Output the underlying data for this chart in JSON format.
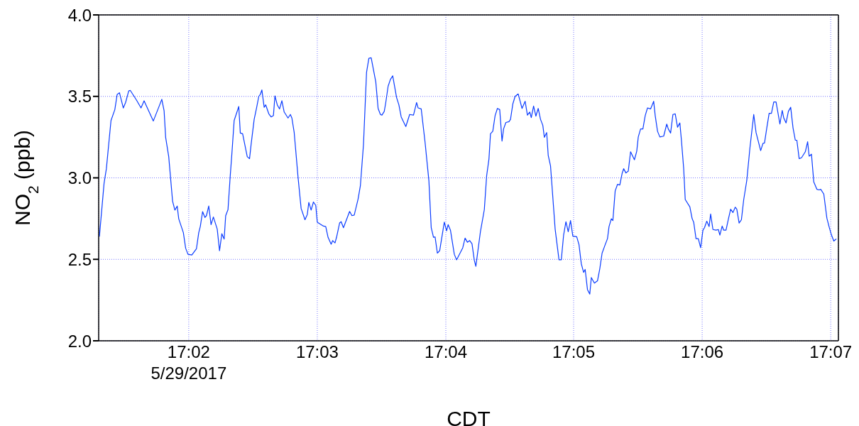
{
  "chart_data": {
    "type": "line",
    "xlabel": "CDT",
    "ylabel": "NO$_{2}$ (ppb)",
    "xlim": [
      17.0216,
      17.1177
    ],
    "ylim": [
      2.0,
      4.0
    ],
    "xticks": [
      {
        "value": 17.0333,
        "label": "17:02\n5/29/2017"
      },
      {
        "value": 17.05,
        "label": "17:03"
      },
      {
        "value": 17.0667,
        "label": "17:04"
      },
      {
        "value": 17.0833,
        "label": "17:05"
      },
      {
        "value": 17.1,
        "label": "17:06"
      },
      {
        "value": 17.1167,
        "label": "17:07"
      }
    ],
    "yticks": [
      {
        "value": 2,
        "label": "2.0"
      },
      {
        "value": 2.5,
        "label": "2.5"
      },
      {
        "value": 3,
        "label": "3.0"
      },
      {
        "value": 3.5,
        "label": "3.5"
      },
      {
        "value": 4,
        "label": "4.0"
      }
    ],
    "grid": true,
    "marker": "none",
    "line_style": "solid",
    "series": [
      {
        "color": "#0a3cff",
        "x": [
          17.0217,
          17.0223,
          17.0226,
          17.0232,
          17.0237,
          17.024,
          17.0243,
          17.0248,
          17.0251,
          17.0255,
          17.0257,
          17.0265,
          17.0271,
          17.0275,
          17.0287,
          17.0294,
          17.0298,
          17.0301,
          17.0303,
          17.0307,
          17.0312,
          17.0315,
          17.0318,
          17.032,
          17.0326,
          17.0329,
          17.0332,
          17.0337,
          17.0343,
          17.0346,
          17.0348,
          17.0351,
          17.0354,
          17.0356,
          17.0359,
          17.0362,
          17.0365,
          17.037,
          17.0373,
          17.0376,
          17.0379,
          17.0381,
          17.0384,
          17.0387,
          17.0389,
          17.0392,
          17.0398,
          17.04,
          17.0403,
          17.0409,
          17.0412,
          17.0414,
          17.0418,
          17.0421,
          17.0424,
          17.0426,
          17.0428,
          17.0431,
          17.0433,
          17.0437,
          17.044,
          17.0443,
          17.0445,
          17.0448,
          17.0451,
          17.0454,
          17.0457,
          17.0462,
          17.0465,
          17.0467,
          17.047,
          17.0475,
          17.0479,
          17.0484,
          17.0487,
          17.0489,
          17.0492,
          17.0495,
          17.0498,
          17.05,
          17.0508,
          17.0511,
          17.0514,
          17.0518,
          17.052,
          17.0523,
          17.0525,
          17.0529,
          17.0531,
          17.0534,
          17.0542,
          17.0545,
          17.0548,
          17.0553,
          17.0556,
          17.056,
          17.0564,
          17.0567,
          17.057,
          17.0576,
          17.0579,
          17.0582,
          17.0584,
          17.0587,
          17.0589,
          17.0592,
          17.0595,
          17.0598,
          17.0603,
          17.0606,
          17.0609,
          17.0615,
          17.062,
          17.0625,
          17.0629,
          17.0631,
          17.0635,
          17.064,
          17.0645,
          17.0648,
          17.0651,
          17.0653,
          17.0656,
          17.0659,
          17.0665,
          17.0668,
          17.067,
          17.0673,
          17.0678,
          17.0681,
          17.0689,
          17.0692,
          17.0695,
          17.0698,
          17.0701,
          17.0704,
          17.0706,
          17.0712,
          17.0717,
          17.072,
          17.0723,
          17.0725,
          17.0728,
          17.0731,
          17.0734,
          17.0737,
          17.074,
          17.0742,
          17.0745,
          17.0749,
          17.0751,
          17.0754,
          17.0757,
          17.0761,
          17.0766,
          17.077,
          17.0773,
          17.0776,
          17.0778,
          17.0781,
          17.0784,
          17.0787,
          17.079,
          17.0793,
          17.0795,
          17.0798,
          17.08,
          17.0803,
          17.0809,
          17.0814,
          17.0817,
          17.082,
          17.0823,
          17.0826,
          17.0829,
          17.0832,
          17.0837,
          17.084,
          17.0843,
          17.0846,
          17.0848,
          17.0851,
          17.0854,
          17.0856,
          17.086,
          17.0864,
          17.0867,
          17.087,
          17.0874,
          17.0877,
          17.0879,
          17.0882,
          17.0884,
          17.0887,
          17.089,
          17.0893,
          17.0896,
          17.0898,
          17.0901,
          17.0904,
          17.0907,
          17.0912,
          17.0915,
          17.0917,
          17.092,
          17.0923,
          17.0926,
          17.0929,
          17.0933,
          17.0937,
          17.0939,
          17.0942,
          17.0945,
          17.095,
          17.0954,
          17.0956,
          17.0959,
          17.0962,
          17.0965,
          17.0968,
          17.0971,
          17.0973,
          17.0976,
          17.0978,
          17.0984,
          17.0987,
          17.0989,
          17.0992,
          17.0995,
          17.0998,
          17.1001,
          17.1003,
          17.1006,
          17.1009,
          17.1011,
          17.1014,
          17.1018,
          17.1021,
          17.1023,
          17.1026,
          17.1028,
          17.1031,
          17.1034,
          17.1037,
          17.104,
          17.1043,
          17.1045,
          17.1048,
          17.1051,
          17.1054,
          17.1058,
          17.1062,
          17.1067,
          17.107,
          17.1076,
          17.1079,
          17.1081,
          17.1084,
          17.1087,
          17.109,
          17.1093,
          17.1096,
          17.1101,
          17.1104,
          17.1106,
          17.1109,
          17.1112,
          17.1115,
          17.1118,
          17.1121,
          17.1123,
          17.1126,
          17.1129,
          17.1134,
          17.1137,
          17.1139,
          17.1142,
          17.1145,
          17.1149,
          17.1152,
          17.1154,
          17.1158,
          17.1162,
          17.1165,
          17.1168,
          17.1171,
          17.1174
        ],
        "values": [
          2.642,
          2.967,
          3.056,
          3.352,
          3.419,
          3.512,
          3.522,
          3.429,
          3.463,
          3.533,
          3.537,
          3.478,
          3.429,
          3.473,
          3.349,
          3.433,
          3.482,
          3.411,
          3.249,
          3.13,
          2.857,
          2.802,
          2.827,
          2.749,
          2.664,
          2.568,
          2.531,
          2.527,
          2.565,
          2.664,
          2.701,
          2.793,
          2.757,
          2.768,
          2.827,
          2.713,
          2.76,
          2.686,
          2.553,
          2.657,
          2.624,
          2.768,
          2.805,
          3.019,
          3.145,
          3.352,
          3.438,
          3.275,
          3.271,
          3.13,
          3.118,
          3.204,
          3.359,
          3.426,
          3.5,
          3.512,
          3.54,
          3.433,
          3.448,
          3.393,
          3.374,
          3.382,
          3.503,
          3.448,
          3.423,
          3.473,
          3.404,
          3.367,
          3.389,
          3.367,
          3.278,
          3.004,
          2.812,
          2.743,
          2.775,
          2.849,
          2.802,
          2.852,
          2.831,
          2.728,
          2.704,
          2.701,
          2.635,
          2.593,
          2.615,
          2.601,
          2.635,
          2.723,
          2.731,
          2.694,
          2.794,
          2.768,
          2.772,
          2.87,
          2.953,
          3.204,
          3.648,
          3.734,
          3.737,
          3.589,
          3.426,
          3.389,
          3.385,
          3.408,
          3.463,
          3.562,
          3.604,
          3.626,
          3.493,
          3.448,
          3.374,
          3.315,
          3.389,
          3.385,
          3.462,
          3.429,
          3.423,
          3.219,
          2.982,
          2.694,
          2.635,
          2.638,
          2.538,
          2.553,
          2.728,
          2.675,
          2.713,
          2.679,
          2.531,
          2.497,
          2.571,
          2.63,
          2.605,
          2.615,
          2.595,
          2.494,
          2.457,
          2.672,
          2.805,
          3.012,
          3.115,
          3.271,
          3.286,
          3.382,
          3.426,
          3.419,
          3.226,
          3.3,
          3.34,
          3.345,
          3.359,
          3.453,
          3.5,
          3.515,
          3.426,
          3.47,
          3.385,
          3.404,
          3.37,
          3.441,
          3.379,
          3.426,
          3.359,
          3.322,
          3.249,
          3.278,
          3.138,
          3.074,
          2.686,
          2.497,
          2.497,
          2.649,
          2.731,
          2.669,
          2.738,
          2.642,
          2.639,
          2.59,
          2.472,
          2.42,
          2.438,
          2.314,
          2.287,
          2.388,
          2.354,
          2.368,
          2.442,
          2.538,
          2.59,
          2.627,
          2.701,
          2.749,
          2.738,
          2.92,
          2.96,
          2.956,
          3.027,
          3.056,
          3.03,
          3.041,
          3.16,
          3.111,
          3.163,
          3.251,
          3.3,
          3.3,
          3.382,
          3.429,
          3.423,
          3.47,
          3.382,
          3.286,
          3.251,
          3.256,
          3.33,
          3.3,
          3.275,
          3.389,
          3.393,
          3.311,
          3.337,
          3.234,
          3.056,
          2.867,
          2.822,
          2.749,
          2.728,
          2.627,
          2.627,
          2.571,
          2.679,
          2.694,
          2.734,
          2.701,
          2.778,
          2.683,
          2.679,
          2.683,
          2.649,
          2.704,
          2.679,
          2.679,
          2.746,
          2.808,
          2.787,
          2.82,
          2.808,
          2.723,
          2.743,
          2.867,
          2.985,
          3.182,
          3.389,
          3.278,
          3.167,
          3.212,
          3.214,
          3.308,
          3.396,
          3.396,
          3.466,
          3.466,
          3.33,
          3.414,
          3.367,
          3.337,
          3.408,
          3.433,
          3.308,
          3.231,
          3.231,
          3.118,
          3.123,
          3.16,
          3.222,
          3.133,
          3.145,
          2.975,
          2.93,
          2.926,
          2.93,
          2.901,
          2.753,
          2.698,
          2.649,
          2.612,
          2.624
        ]
      }
    ]
  }
}
